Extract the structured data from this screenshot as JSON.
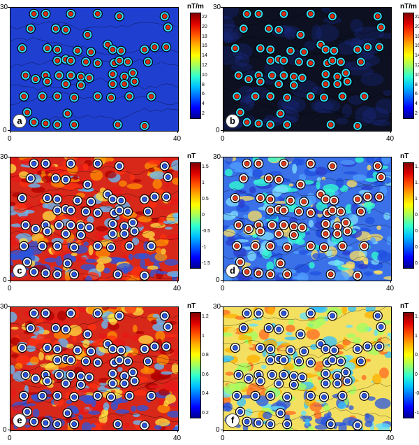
{
  "panels": [
    {
      "id": "a",
      "letter": "a",
      "unit": "nT/m",
      "style": "grad",
      "ticks": [
        "22",
        "20",
        "18",
        "16",
        "14",
        "12",
        "10",
        "8",
        "6",
        "4",
        "2"
      ],
      "axis": {
        "y_top": "30",
        "y_bottom": "0",
        "x_right": "40"
      },
      "colors": {
        "background": "#1f3fd0",
        "anomaly": "#d62c10"
      }
    },
    {
      "id": "b",
      "letter": "b",
      "unit": "nT/m",
      "style": "grad_dark",
      "ticks": [
        "22",
        "20",
        "18",
        "16",
        "14",
        "12",
        "10",
        "8",
        "6",
        "4",
        "2"
      ],
      "axis": {
        "y_top": "30",
        "y_bottom": "0",
        "x_right": "40"
      },
      "colors": {
        "background": "#0c1020",
        "anomaly": "#d62c10"
      }
    },
    {
      "id": "c",
      "letter": "c",
      "unit": "nT",
      "style": "field_warm",
      "ticks": [
        "1.5",
        "1",
        "0.5",
        "0",
        "-0.5",
        "-1",
        "-1.5"
      ],
      "axis": {
        "y_top": "30",
        "y_bottom": "0",
        "x_right": "40"
      },
      "colors": {
        "background": "#d8281a",
        "anomaly": "#2a55e0"
      }
    },
    {
      "id": "d",
      "letter": "d",
      "unit": "nT",
      "style": "field_cool",
      "ticks": [
        "1.4",
        "1.2",
        "1",
        "0.8",
        "0.6",
        "0.4",
        "0.2"
      ],
      "axis": {
        "y_top": "30",
        "y_bottom": "0",
        "x_right": "40"
      },
      "colors": {
        "background": "#3a70e8",
        "anomaly": "#e03a1a"
      }
    },
    {
      "id": "e",
      "letter": "e",
      "unit": "nT",
      "style": "field_warm",
      "ticks": [
        "1.2",
        "1",
        "0.8",
        "0.6",
        "0.4",
        "0.2"
      ],
      "axis": {
        "y_top": "30",
        "y_bottom": "0",
        "x_right": "40"
      },
      "colors": {
        "background": "#d8281a",
        "anomaly": "#2a55e0"
      }
    },
    {
      "id": "f",
      "letter": "f",
      "unit": "nT",
      "style": "field_mixed",
      "ticks": [
        "1.5",
        "1",
        "0.5",
        "0",
        "-0.5",
        "-1"
      ],
      "axis": {
        "y_top": "30",
        "y_bottom": "0",
        "x_right": "40"
      },
      "colors": {
        "background": "#f4e060",
        "anomaly": "#2a55e0"
      }
    }
  ]
}
